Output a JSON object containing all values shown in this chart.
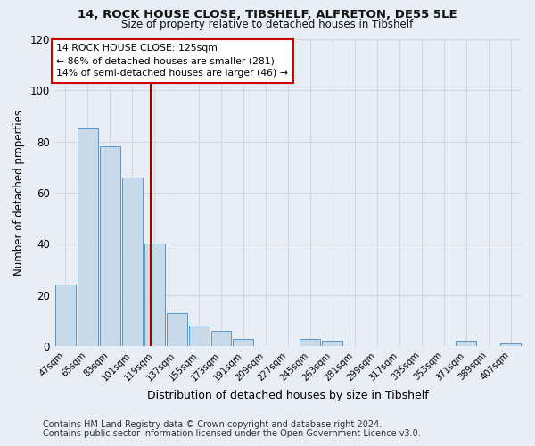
{
  "title1": "14, ROCK HOUSE CLOSE, TIBSHELF, ALFRETON, DE55 5LE",
  "title2": "Size of property relative to detached houses in Tibshelf",
  "xlabel": "Distribution of detached houses by size in Tibshelf",
  "ylabel": "Number of detached properties",
  "bin_left_edges": [
    47,
    65,
    83,
    101,
    119,
    137,
    155,
    173,
    191,
    209,
    227,
    245,
    263,
    281,
    299,
    317,
    335,
    353,
    371,
    389,
    407
  ],
  "bin_width": 18,
  "bar_heights": [
    24,
    85,
    78,
    66,
    40,
    13,
    8,
    6,
    3,
    0,
    0,
    3,
    2,
    0,
    0,
    0,
    0,
    0,
    2,
    0,
    1
  ],
  "bar_color": "#c8daea",
  "bar_edge_color": "#5a96c8",
  "red_line_x": 125,
  "red_line_color": "#990000",
  "annotation_title": "14 ROCK HOUSE CLOSE: 125sqm",
  "annotation_line1": "← 86% of detached houses are smaller (281)",
  "annotation_line2": "14% of semi-detached houses are larger (46) →",
  "annotation_border_color": "#cc0000",
  "ylim_max": 120,
  "yticks": [
    0,
    20,
    40,
    60,
    80,
    100,
    120
  ],
  "bg_color": "#e8eef6",
  "grid_color": "#d0d8e0",
  "footer1": "Contains HM Land Registry data © Crown copyright and database right 2024.",
  "footer2": "Contains public sector information licensed under the Open Government Licence v3.0."
}
